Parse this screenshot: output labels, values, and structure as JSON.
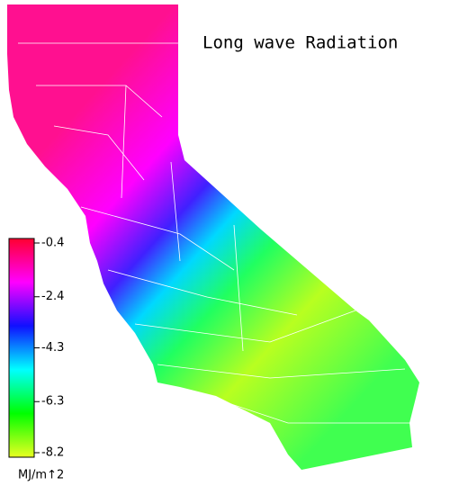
{
  "map": {
    "title": "Long wave Radiation",
    "legend": {
      "lim": [
        -0.4,
        -8.2
      ],
      "ticks": [
        -0.4,
        -2.4,
        -4.3,
        -6.3,
        -8.2
      ],
      "unit": "MJ/m↑2",
      "colors": [
        "#ff0030",
        "#ff00ff",
        "#1010ff",
        "#00ffff",
        "#00ff00",
        "#e8ff20"
      ]
    }
  }
}
